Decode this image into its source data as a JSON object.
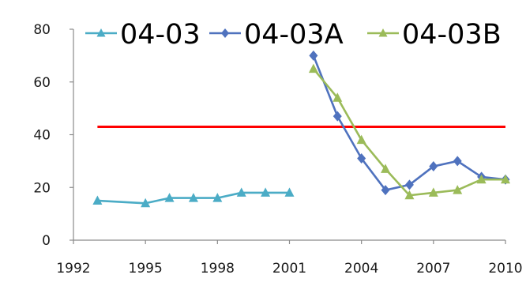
{
  "chart_data": {
    "type": "line",
    "title": "",
    "xlabel": "",
    "ylabel": "",
    "xlim": [
      1992,
      2010
    ],
    "ylim": [
      0,
      80
    ],
    "x_ticks": [
      1992,
      1995,
      1998,
      2001,
      2004,
      2007,
      2010
    ],
    "y_ticks": [
      0,
      20,
      40,
      60,
      80
    ],
    "x_tick_labels": [
      "1992",
      "1995",
      "1998",
      "2001",
      "2004",
      "2007",
      "2010"
    ],
    "y_tick_labels": [
      "0",
      "20",
      "40",
      "60",
      "80"
    ],
    "grid": false,
    "legend_position": "top",
    "series": [
      {
        "name": "04-03",
        "color": "#4bacc6",
        "marker": "triangle",
        "points": [
          [
            1993,
            15
          ],
          [
            1995,
            14
          ],
          [
            1996,
            16
          ],
          [
            1997,
            16
          ],
          [
            1998,
            16
          ],
          [
            1999,
            18
          ],
          [
            2000,
            18
          ],
          [
            2001,
            18
          ]
        ]
      },
      {
        "name": "04-03A",
        "color": "#4f72be",
        "marker": "diamond",
        "points": [
          [
            2002,
            70
          ],
          [
            2003,
            47
          ],
          [
            2004,
            31
          ],
          [
            2005,
            19
          ],
          [
            2006,
            21
          ],
          [
            2007,
            28
          ],
          [
            2008,
            30
          ],
          [
            2009,
            24
          ],
          [
            2010,
            23
          ]
        ]
      },
      {
        "name": "04-03B",
        "color": "#9bbb59",
        "marker": "triangle",
        "points": [
          [
            2002,
            65
          ],
          [
            2003,
            54
          ],
          [
            2004,
            38
          ],
          [
            2005,
            27
          ],
          [
            2006,
            17
          ],
          [
            2007,
            18
          ],
          [
            2008,
            19
          ],
          [
            2009,
            23
          ],
          [
            2010,
            23
          ]
        ]
      }
    ],
    "reference_lines": [
      {
        "y": 43,
        "color": "#ff0000"
      }
    ]
  }
}
